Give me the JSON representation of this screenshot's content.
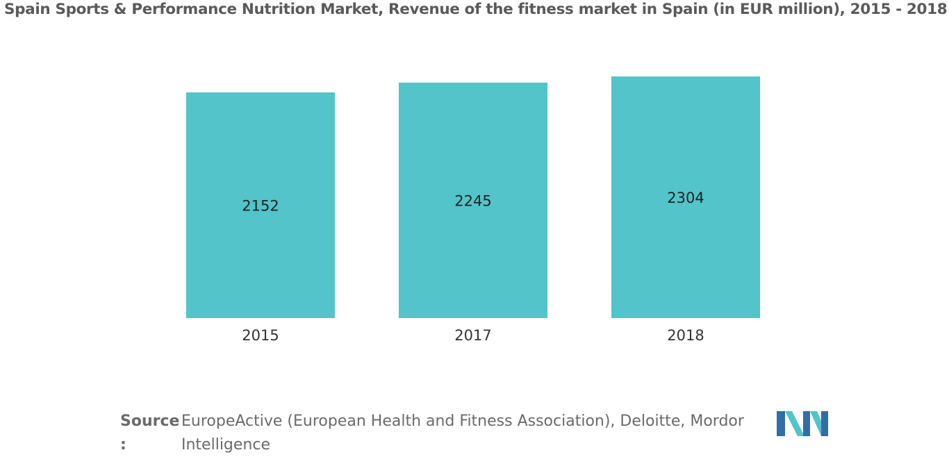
{
  "chart_data": {
    "type": "bar",
    "title": "Spain Sports & Performance Nutrition Market, Revenue of the fitness market in Spain (in EUR million), 2015 - 2018",
    "categories": [
      "2015",
      "2017",
      "2018"
    ],
    "values": [
      2152,
      2245,
      2304
    ],
    "data_labels": [
      "2152",
      "2245",
      "2304"
    ],
    "bar_color": "#52c4ca",
    "ylim": [
      0,
      2400
    ],
    "grid": false,
    "legend": "none"
  },
  "source": {
    "label": "Source",
    "colon": ":",
    "text": "EuropeActive (European Health and Fitness Association), Deloitte, Mordor Intelligence"
  },
  "logo": {
    "icon": "mordor-intelligence-logo",
    "colors": [
      "#52c4ca",
      "#2f6fa6"
    ]
  }
}
